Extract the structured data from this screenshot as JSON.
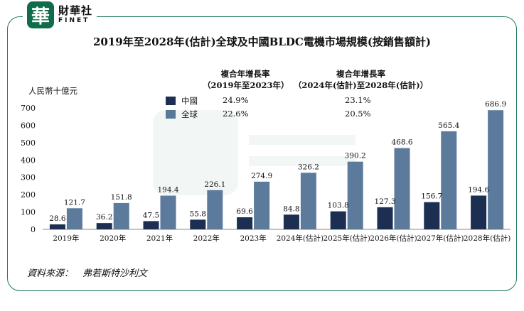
{
  "brand": {
    "logo_char": "華",
    "name_cn": "財華社",
    "name_en": "FINET"
  },
  "title": "2019年至2028年(估計)全球及中國BLDC電機市場規模(按銷售額計)",
  "unit_label": "人民幣十億元",
  "cagr": {
    "head_1": "複合年增長率",
    "head_1_sub": "（2019年至2023年）",
    "head_2": "複合年增長率",
    "head_2_sub": "（2024年(估計)至2028年(估計)）",
    "rows": [
      {
        "name": "中國",
        "hist": "24.9%",
        "fcst": "23.1%",
        "color": "#1c2e52"
      },
      {
        "name": "全球",
        "hist": "22.6%",
        "fcst": "20.5%",
        "color": "#5c7a9c"
      }
    ]
  },
  "source_label": "資料來源：　弗若斯特沙利文",
  "colors": {
    "china": "#1c2e52",
    "global": "#5c7a9c",
    "frame": "#1f7a5a"
  },
  "chart_data": {
    "type": "bar",
    "categories": [
      "2019年",
      "2020年",
      "2021年",
      "2022年",
      "2023年",
      "2024年(估計)",
      "2025年(估計)",
      "2026年(估計)",
      "2027年(估計)",
      "2028年(估計)"
    ],
    "series": [
      {
        "name": "中國",
        "values": [
          28.6,
          36.2,
          47.5,
          55.8,
          69.6,
          84.8,
          103.8,
          127.3,
          156.7,
          194.6
        ]
      },
      {
        "name": "全球",
        "values": [
          121.7,
          151.8,
          194.4,
          226.1,
          274.9,
          326.2,
          390.2,
          468.6,
          565.4,
          686.9
        ]
      }
    ],
    "ylabel": "人民幣十億元",
    "ylim": [
      0,
      700
    ],
    "yticks": [
      0,
      100,
      200,
      300,
      400,
      500,
      600,
      700
    ],
    "grid": false,
    "legend": "top-left"
  }
}
